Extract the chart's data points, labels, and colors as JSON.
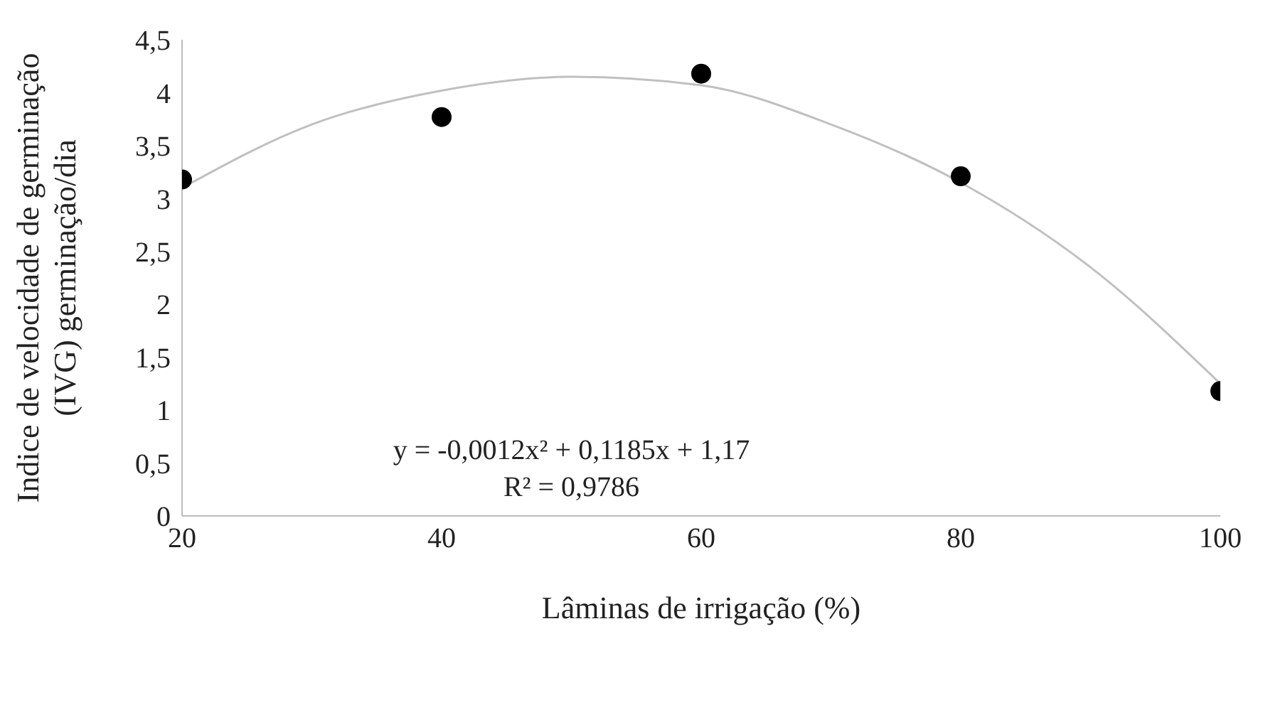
{
  "chart_data": {
    "type": "scatter",
    "xlabel": "Lâminas de irrigação (%)",
    "ylabel": "Indice de velocidade de germinação\n(IVG) germinação/dia",
    "x": [
      20,
      40,
      60,
      80,
      100
    ],
    "series": [
      {
        "color": "#000000",
        "marker": "circle",
        "values": [
          3.18,
          3.77,
          4.18,
          3.21,
          1.18
        ]
      },
      {
        "type": "line",
        "color": "#c0c0c0",
        "marker": "none",
        "x": [
          20,
          30,
          40,
          50,
          60,
          70,
          80,
          90,
          100
        ],
        "values": [
          3.1,
          3.7,
          4.02,
          4.15,
          4.07,
          3.7,
          3.15,
          2.35,
          1.25
        ]
      }
    ],
    "xlim": [
      20,
      100
    ],
    "xticks": [
      20,
      40,
      60,
      80,
      100
    ],
    "ylim": [
      0,
      4.5
    ],
    "yticks": [
      0,
      {
        "value": 0.5,
        "label": "0,5"
      },
      1,
      {
        "value": 1.5,
        "label": "1,5"
      },
      2,
      {
        "value": 2.5,
        "label": "2,5"
      },
      3,
      {
        "value": 3.5,
        "label": "3,5"
      },
      4,
      {
        "value": 4.5,
        "label": "4,5"
      }
    ],
    "grid": false,
    "annotations": [
      "y = -0,0012x² + 0,1185x + 1,17",
      "R² = 0,9786"
    ]
  }
}
